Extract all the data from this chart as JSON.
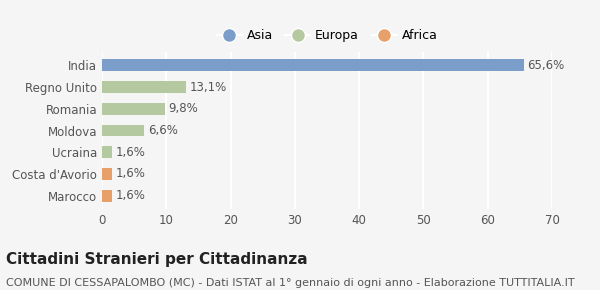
{
  "categories": [
    "Marocco",
    "Costa d'Avorio",
    "Ucraina",
    "Moldova",
    "Romania",
    "Regno Unito",
    "India"
  ],
  "values": [
    1.6,
    1.6,
    1.6,
    6.6,
    9.8,
    13.1,
    65.6
  ],
  "labels": [
    "1,6%",
    "1,6%",
    "1,6%",
    "6,6%",
    "9,8%",
    "13,1%",
    "65,6%"
  ],
  "colors": [
    "#e8a06a",
    "#e8a06a",
    "#b5c9a0",
    "#b5c9a0",
    "#b5c9a0",
    "#b5c9a0",
    "#7b9dc9"
  ],
  "legend_items": [
    {
      "label": "Asia",
      "color": "#7b9dc9"
    },
    {
      "label": "Europa",
      "color": "#b5c9a0"
    },
    {
      "label": "Africa",
      "color": "#e8a06a"
    }
  ],
  "xlim": [
    0,
    70
  ],
  "xticks": [
    0,
    10,
    20,
    30,
    40,
    50,
    60,
    70
  ],
  "title": "Cittadini Stranieri per Cittadinanza",
  "subtitle": "COMUNE DI CESSAPALOMBO (MC) - Dati ISTAT al 1° gennaio di ogni anno - Elaborazione TUTTITALIA.IT",
  "background_color": "#f5f5f5",
  "grid_color": "#ffffff",
  "bar_height": 0.55,
  "title_fontsize": 11,
  "subtitle_fontsize": 8,
  "label_fontsize": 8.5,
  "tick_fontsize": 8.5
}
